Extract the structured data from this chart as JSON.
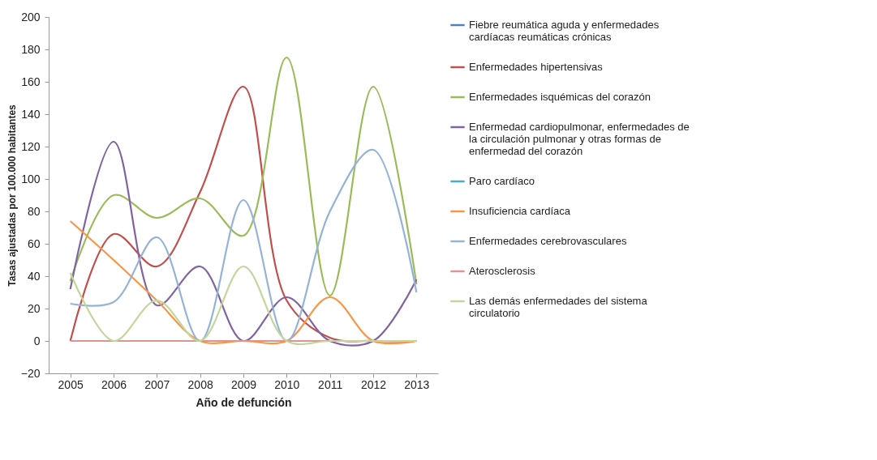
{
  "chart_data": {
    "type": "line",
    "xlabel": "Año de defunción",
    "ylabel": "Tasas ajustadas por 100.000 habitantes",
    "categories": [
      "2005",
      "2006",
      "2007",
      "2008",
      "2009",
      "2010",
      "2011",
      "2012",
      "2013"
    ],
    "ylim": [
      -20,
      200
    ],
    "yticks": [
      -20,
      0,
      20,
      40,
      60,
      80,
      100,
      120,
      140,
      160,
      180,
      200
    ],
    "grid": false,
    "legend": "right",
    "marker": "none",
    "series": [
      {
        "name": "Fiebre reumática aguda y enfermedades cardíacas reumáticas crónicas",
        "color": "#4f81bd",
        "values": [
          null,
          null,
          null,
          null,
          null,
          null,
          null,
          null,
          null
        ]
      },
      {
        "name": "Enfermedades hipertensivas",
        "color": "#c0504d",
        "values": [
          0,
          66,
          46,
          92,
          157,
          25,
          2,
          0,
          0
        ]
      },
      {
        "name": "Enfermedades isquémicas del corazón",
        "color": "#9bbb59",
        "values": [
          37,
          90,
          76,
          88,
          65,
          175,
          28,
          157,
          35
        ]
      },
      {
        "name": "Enfermedad cardiopulmonar, enfermedades de la circulación pulmonar y otras formas de enfermedad del corazón",
        "color": "#8064a2",
        "values": [
          32,
          123,
          22,
          46,
          0,
          27,
          0,
          0,
          38
        ]
      },
      {
        "name": "Paro cardíaco",
        "color": "#4bacc6",
        "values": [
          null,
          null,
          null,
          null,
          null,
          null,
          null,
          null,
          null
        ]
      },
      {
        "name": "Insuficiencia cardíaca",
        "color": "#f79646",
        "values": [
          74,
          50,
          25,
          0,
          0,
          0,
          27,
          0,
          0
        ]
      },
      {
        "name": "Enfermedades cerebrovasculares",
        "color": "#95b3d7",
        "values": [
          23,
          24,
          64,
          0,
          87,
          0,
          80,
          118,
          30
        ]
      },
      {
        "name": "Aterosclerosis",
        "color": "#d99694",
        "values": [
          0,
          0,
          0,
          0,
          0,
          0,
          0,
          0,
          0
        ]
      },
      {
        "name": "Las demás enfermedades del sistema circulatorio",
        "color": "#c3d69b",
        "values": [
          42,
          0,
          25,
          0,
          46,
          0,
          0,
          0,
          0
        ]
      }
    ]
  }
}
